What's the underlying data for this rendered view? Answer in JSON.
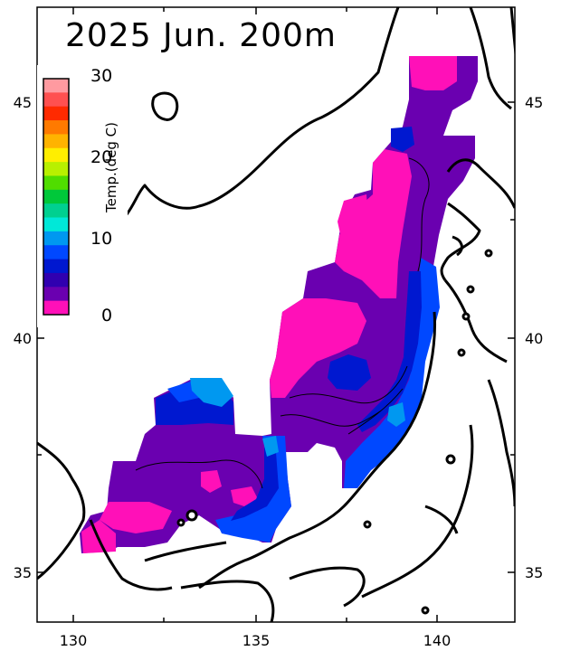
{
  "title": "2025 Jun. 200m",
  "colorbar": {
    "label": "Temp.(deg C)",
    "tick_labels": [
      "30",
      "20",
      "10",
      "0"
    ],
    "colors": [
      "#ff9aa0",
      "#ff5050",
      "#ff2a00",
      "#ff7a00",
      "#ffb300",
      "#ffee00",
      "#b8f000",
      "#50dd00",
      "#00c83a",
      "#00d090",
      "#00e8d8",
      "#0098f0",
      "#0048ff",
      "#0018d0",
      "#3000b0",
      "#6a00b0",
      "#ff10b8"
    ]
  },
  "axes": {
    "x_ticks": [
      "130",
      "135",
      "140"
    ],
    "y_ticks_left": [
      "45",
      "40",
      "35"
    ],
    "y_ticks_right": [
      "45",
      "40",
      "35"
    ]
  },
  "legend_colors": {
    "land_outline": "#000000",
    "pink": "#ff10b8",
    "purple": "#6a00b0",
    "blue": "#0048ff",
    "navy": "#0018d0",
    "skyblue": "#0098f0"
  }
}
